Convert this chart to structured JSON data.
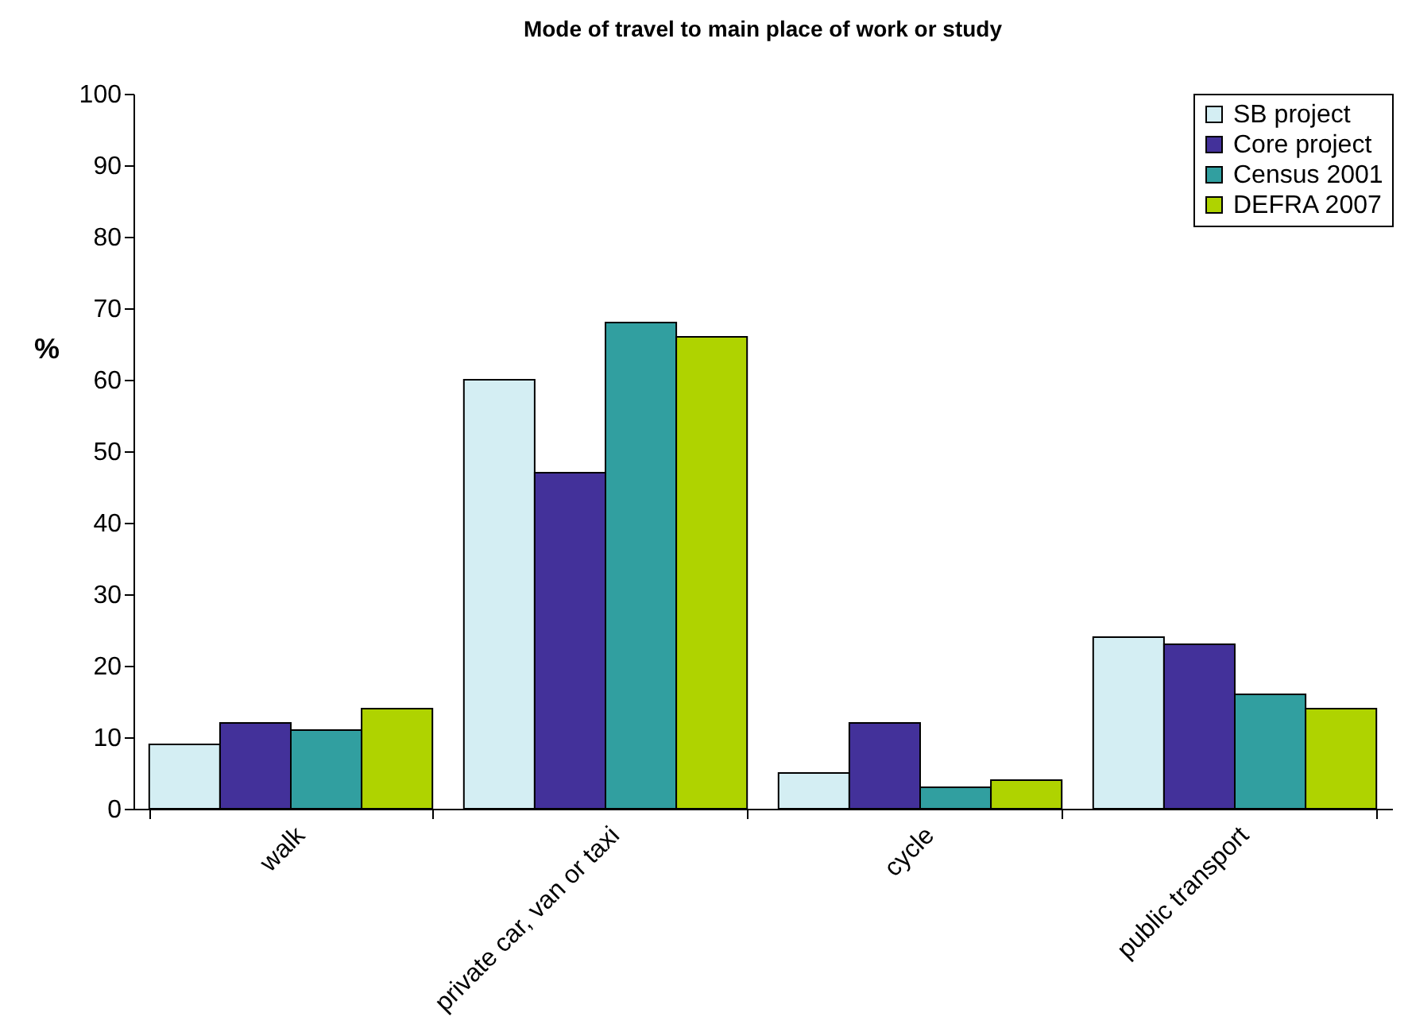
{
  "chart_data": {
    "type": "bar",
    "title": "Mode of travel to main place of work or study",
    "ylabel": "%",
    "categories": [
      "walk",
      "private car, van or taxi",
      "cycle",
      "public transport"
    ],
    "series": [
      {
        "name": "SB project",
        "color": "#d4eef3",
        "values": [
          9,
          60,
          5,
          24
        ]
      },
      {
        "name": "Core project",
        "color": "#43319a",
        "values": [
          12,
          47,
          12,
          23
        ]
      },
      {
        "name": "Census 2001",
        "color": "#319fa0",
        "values": [
          11,
          68,
          3,
          16
        ]
      },
      {
        "name": "DEFRA 2007",
        "color": "#afd300",
        "values": [
          14,
          66,
          4,
          14
        ]
      }
    ],
    "ylim": [
      0,
      100
    ],
    "yticks": [
      0,
      10,
      20,
      30,
      40,
      50,
      60,
      70,
      80,
      90,
      100
    ],
    "grid": false,
    "legend": "top right"
  }
}
